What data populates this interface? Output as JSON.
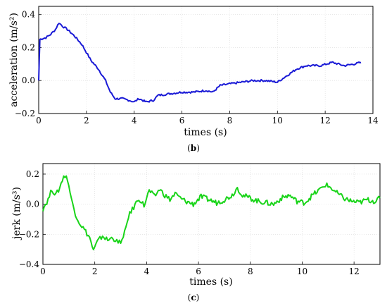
{
  "chart_data": [
    {
      "type": "line",
      "panel_label": {
        "open": "(",
        "letter": "b",
        "close": ")"
      },
      "xlabel": "times (s)",
      "ylabel": "acceleration (m/s²)",
      "xlim": [
        0,
        14
      ],
      "ylim": [
        -0.2,
        0.45
      ],
      "xticks": [
        "0",
        "2",
        "4",
        "6",
        "8",
        "10",
        "12",
        "14"
      ],
      "yticks": [
        "−0.2",
        "0.0",
        "0.2",
        "0.4"
      ],
      "xtick_values": [
        0,
        2,
        4,
        6,
        8,
        10,
        12,
        14
      ],
      "ytick_values": [
        -0.2,
        0.0,
        0.2,
        0.4
      ],
      "grid": true,
      "color": "#1a1ad6",
      "series": [
        {
          "x": [
            0.0,
            0.05,
            0.3,
            0.5,
            0.7,
            0.85,
            1.0,
            1.2,
            1.5,
            1.8,
            2.0,
            2.2,
            2.5,
            2.8,
            3.0,
            3.2,
            3.5,
            3.8,
            4.0,
            4.2,
            4.5,
            4.8,
            5.0,
            5.5,
            6.0,
            6.5,
            7.0,
            7.3,
            7.6,
            8.0,
            8.5,
            9.0,
            9.5,
            10.0,
            10.5,
            10.8,
            11.2,
            11.8,
            12.3,
            12.8,
            13.2,
            13.5
          ],
          "y": [
            0.0,
            0.25,
            0.26,
            0.28,
            0.31,
            0.35,
            0.33,
            0.31,
            0.27,
            0.22,
            0.17,
            0.12,
            0.07,
            0.0,
            -0.07,
            -0.11,
            -0.11,
            -0.12,
            -0.13,
            -0.11,
            -0.13,
            -0.12,
            -0.09,
            -0.08,
            -0.07,
            -0.07,
            -0.06,
            -0.07,
            -0.03,
            -0.02,
            -0.01,
            0.0,
            0.0,
            -0.01,
            0.04,
            0.07,
            0.09,
            0.09,
            0.11,
            0.09,
            0.1,
            0.11
          ]
        }
      ]
    },
    {
      "type": "line",
      "panel_label": {
        "open": "(",
        "letter": "c",
        "close": ")"
      },
      "xlabel": "times (s)",
      "ylabel": "jerk (m/s³)",
      "xlim": [
        0,
        13
      ],
      "ylim": [
        -0.4,
        0.27
      ],
      "xticks": [
        "0",
        "2",
        "4",
        "6",
        "8",
        "10",
        "12"
      ],
      "yticks": [
        "−0.4",
        "−0.2",
        "0.0",
        "0.2"
      ],
      "xtick_values": [
        0,
        2,
        4,
        6,
        8,
        10,
        12
      ],
      "ytick_values": [
        -0.4,
        -0.2,
        0.0,
        0.2
      ],
      "grid": true,
      "color": "#19d419",
      "series": [
        {
          "x": [
            0.0,
            0.2,
            0.35,
            0.5,
            0.65,
            0.8,
            0.95,
            1.1,
            1.25,
            1.4,
            1.6,
            1.8,
            1.95,
            2.1,
            2.3,
            2.5,
            2.7,
            2.9,
            3.1,
            3.3,
            3.5,
            3.7,
            3.9,
            4.1,
            4.3,
            4.5,
            4.7,
            4.9,
            5.1,
            5.3,
            5.5,
            5.8,
            6.1,
            6.4,
            6.7,
            7.0,
            7.3,
            7.5,
            7.7,
            8.0,
            8.3,
            8.6,
            8.9,
            9.2,
            9.5,
            9.8,
            10.1,
            10.4,
            10.7,
            10.9,
            11.1,
            11.3,
            11.6,
            11.9,
            12.2,
            12.5,
            12.8,
            13.0
          ],
          "y": [
            -0.03,
            0.03,
            0.1,
            0.06,
            0.11,
            0.19,
            0.17,
            0.03,
            -0.06,
            -0.12,
            -0.17,
            -0.22,
            -0.31,
            -0.25,
            -0.21,
            -0.24,
            -0.22,
            -0.26,
            -0.23,
            -0.08,
            -0.02,
            0.04,
            -0.01,
            0.09,
            0.05,
            0.1,
            0.06,
            0.03,
            0.07,
            0.04,
            0.02,
            0.0,
            0.05,
            0.03,
            0.01,
            0.03,
            0.06,
            0.11,
            0.06,
            0.04,
            0.02,
            0.01,
            0.0,
            0.04,
            0.06,
            0.02,
            0.01,
            0.06,
            0.1,
            0.13,
            0.11,
            0.08,
            0.04,
            0.02,
            0.01,
            0.03,
            0.02,
            0.04
          ]
        }
      ]
    }
  ]
}
